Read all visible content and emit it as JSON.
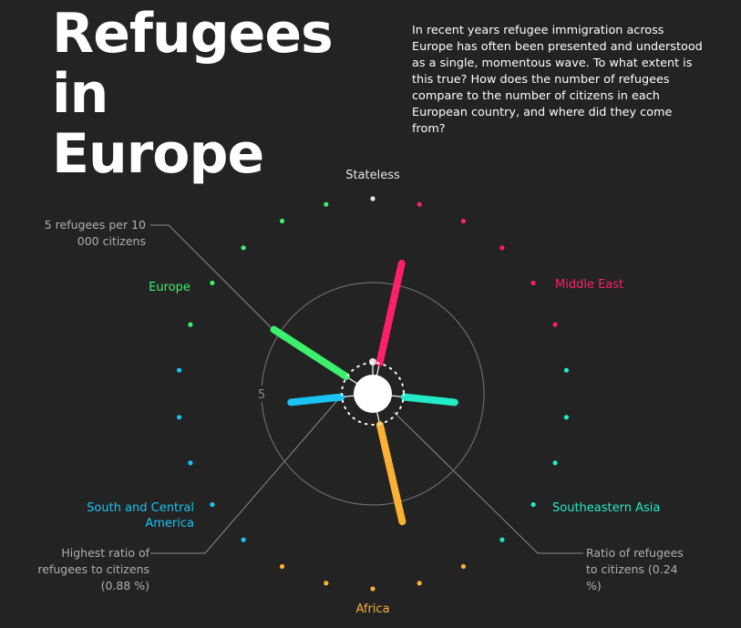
{
  "title": "Refugees in Europe",
  "description": "In recent years refugee immigration across Europe has often been presented and understood as a single, momentous wave. To what extent is this true? How does the number of refugees compare to the number of citizens in each European country, and where did they come from?",
  "chart_data": {
    "type": "radial_bar",
    "categories": [
      "Stateless",
      "Middle East",
      "Southeastern Asia",
      "Africa",
      "South and Central America",
      "Europe"
    ],
    "colors": [
      "#e6e6e6",
      "#ff1f6b",
      "#22ebc6",
      "#f9b233",
      "#19c3f2",
      "#3cf06d"
    ],
    "values": [
      0,
      6.0,
      3.7,
      5.9,
      3.7,
      5.3
    ],
    "rlim": [
      0,
      5
    ],
    "rticks": [
      5
    ],
    "annotations": [
      "5 refugees per 10 000 citizens",
      "Highest ratio of refugees to citizens (0.88 %)",
      "Ratio of refugees to citizens (0.24 %)"
    ]
  }
}
